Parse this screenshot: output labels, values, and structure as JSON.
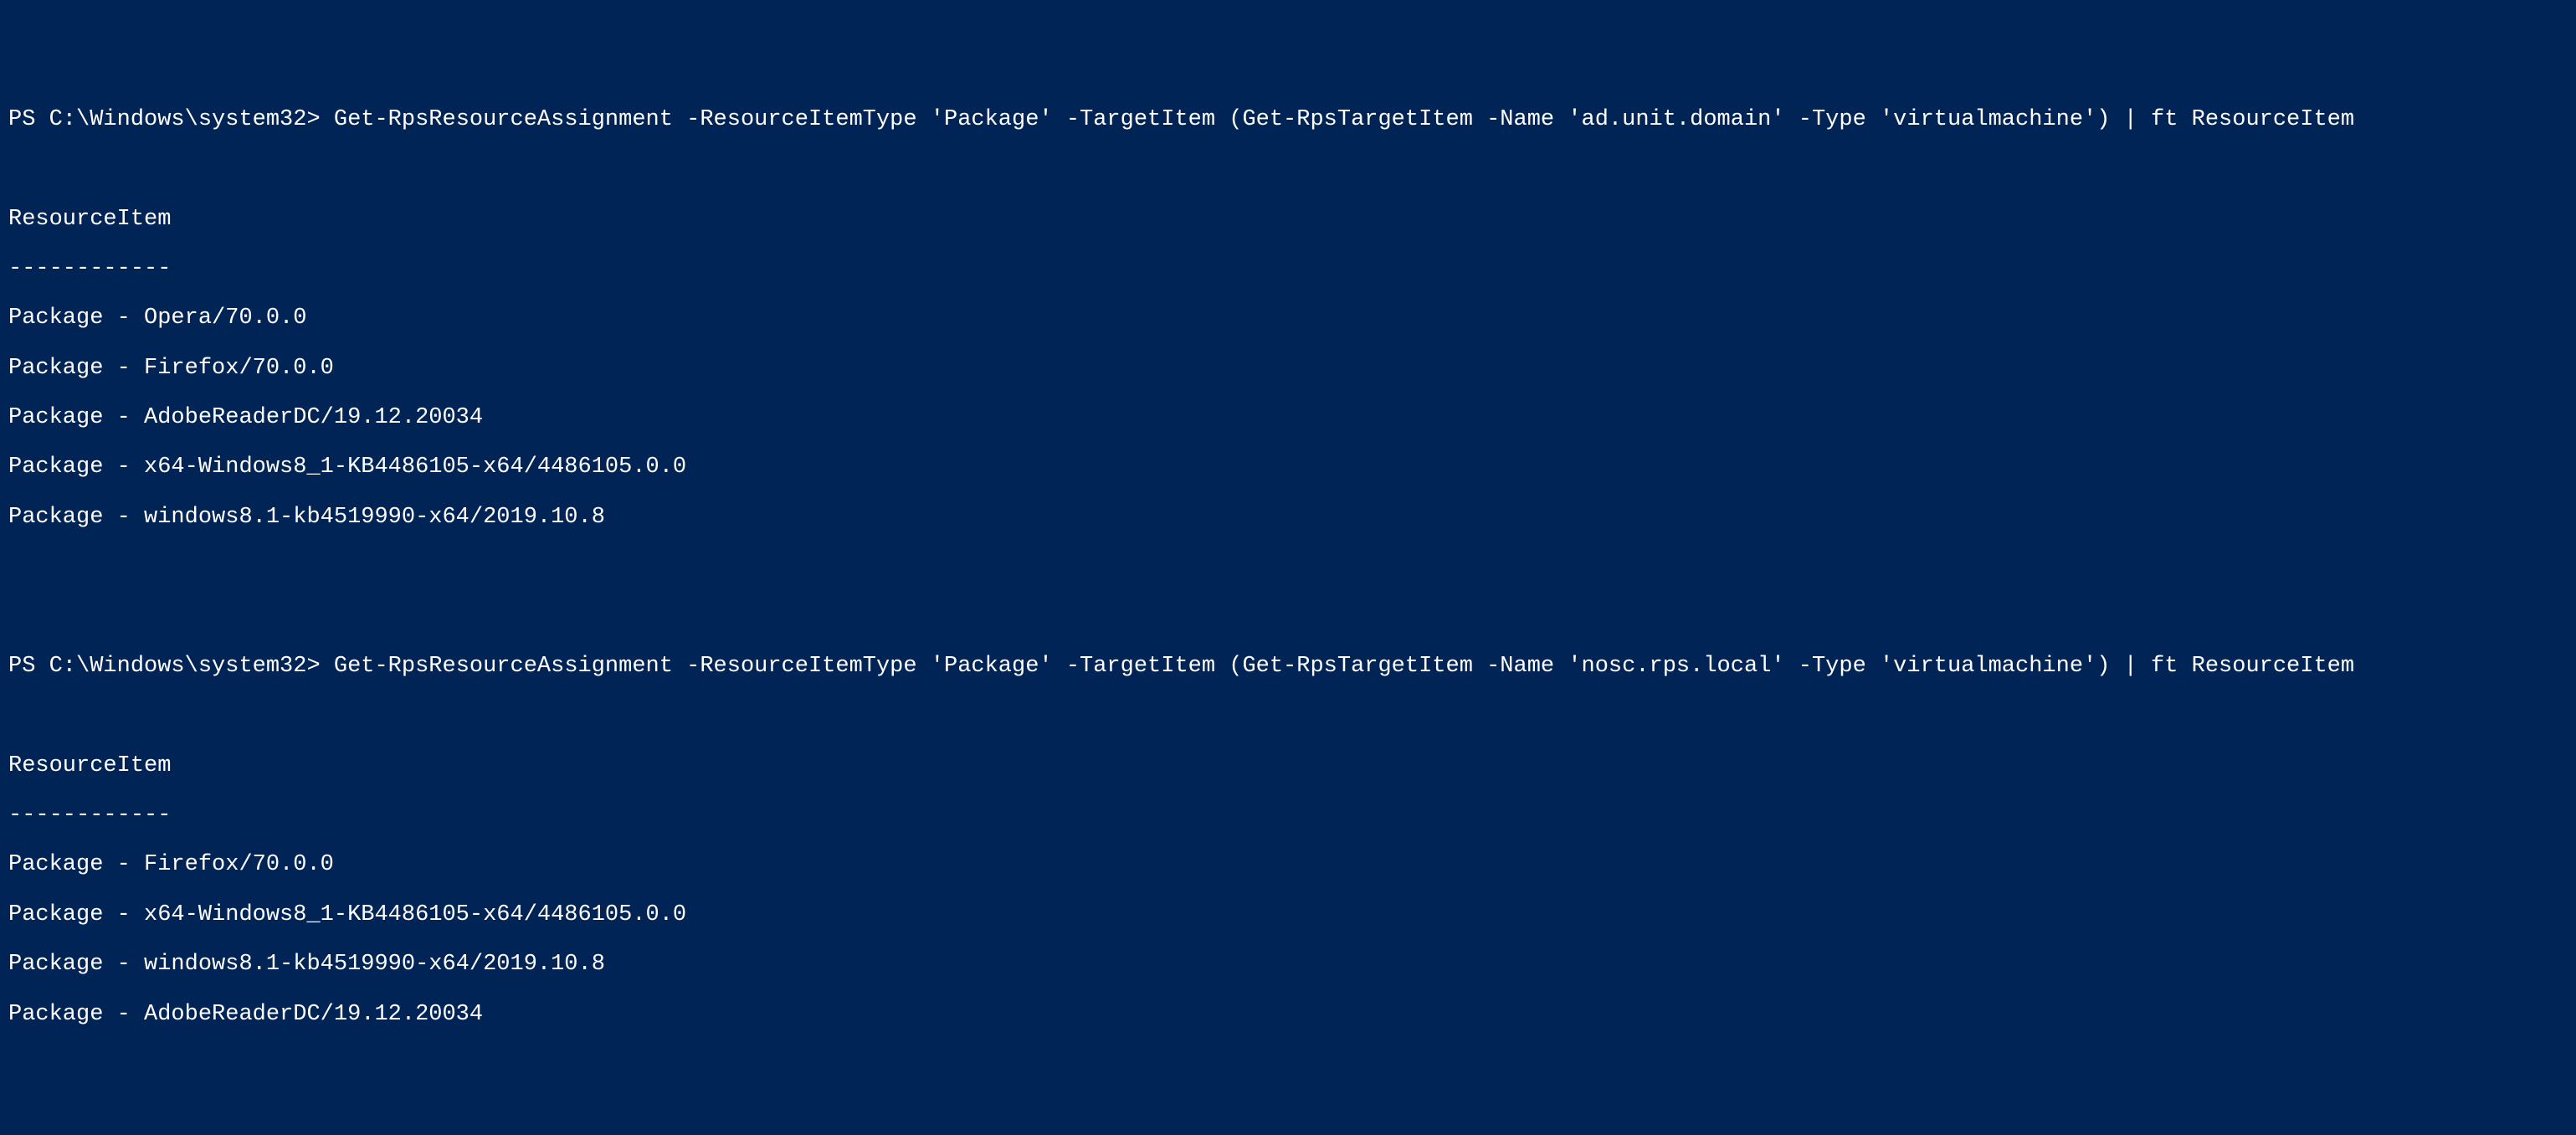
{
  "background_color": "#012456",
  "text_color": "#ffffff",
  "font_family": "Consolas, Lucida Console, monospace",
  "font_size": 27,
  "commands": [
    {
      "prompt": "PS C:\\Windows\\system32> ",
      "cmd": "Get-RpsResourceAssignment -ResourceItemType 'Package' -TargetItem (Get-RpsTargetItem -Name 'ad.unit.domain' -Type 'virtualmachine') | ft ResourceItem",
      "header": "ResourceItem",
      "divider": "------------",
      "rows": [
        "Package - Opera/70.0.0",
        "Package - Firefox/70.0.0",
        "Package - AdobeReaderDC/19.12.20034",
        "Package - x64-Windows8_1-KB4486105-x64/4486105.0.0",
        "Package - windows8.1-kb4519990-x64/2019.10.8"
      ]
    },
    {
      "prompt": "PS C:\\Windows\\system32> ",
      "cmd": "Get-RpsResourceAssignment -ResourceItemType 'Package' -TargetItem (Get-RpsTargetItem -Name 'nosc.rps.local' -Type 'virtualmachine') | ft ResourceItem",
      "header": "ResourceItem",
      "divider": "------------",
      "rows": [
        "Package - Firefox/70.0.0",
        "Package - x64-Windows8_1-KB4486105-x64/4486105.0.0",
        "Package - windows8.1-kb4519990-x64/2019.10.8",
        "Package - AdobeReaderDC/19.12.20034"
      ]
    }
  ]
}
